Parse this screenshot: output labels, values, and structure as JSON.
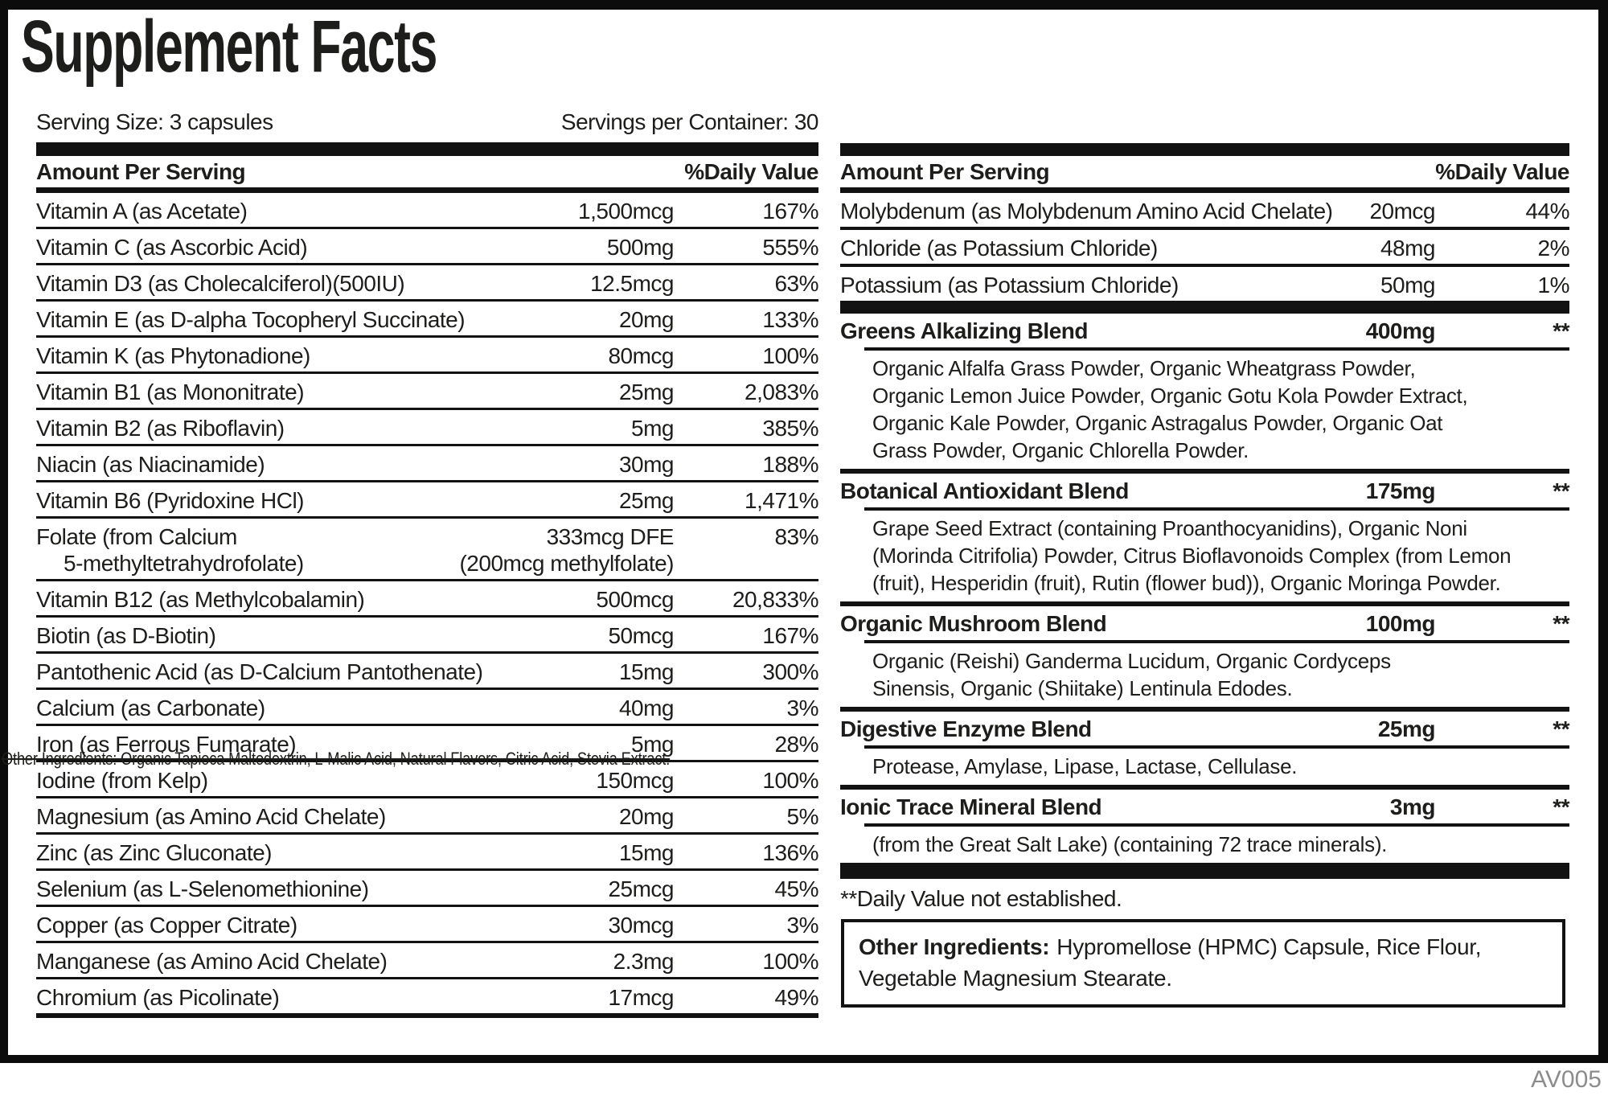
{
  "label": {
    "title": "Supplement Facts",
    "serving_size": "Serving Size: 3 capsules",
    "servings_per_container": "Servings per Container: 30",
    "columns": {
      "amount": "Amount Per Serving",
      "daily_value": "%Daily Value"
    },
    "left_rows": [
      {
        "name": "Vitamin A (as Acetate)",
        "amount": "1,500mcg",
        "dv": "167%"
      },
      {
        "name": "Vitamin C (as Ascorbic Acid)",
        "amount": "500mg",
        "dv": "555%"
      },
      {
        "name": "Vitamin D3 (as Cholecalciferol)(500IU)",
        "amount": "12.5mcg",
        "dv": "63%"
      },
      {
        "name": "Vitamin E (as D-alpha Tocopheryl Succinate)",
        "amount": "20mg",
        "dv": "133%"
      },
      {
        "name": "Vitamin K (as Phytonadione)",
        "amount": "80mcg",
        "dv": "100%"
      },
      {
        "name": "Vitamin B1 (as Mononitrate)",
        "amount": "25mg",
        "dv": "2,083%"
      },
      {
        "name": "Vitamin B2 (as Riboflavin)",
        "amount": "5mg",
        "dv": "385%"
      },
      {
        "name": "Niacin (as Niacinamide)",
        "amount": "30mg",
        "dv": "188%"
      },
      {
        "name": "Vitamin B6 (Pyridoxine HCl)",
        "amount": "25mg",
        "dv": "1,471%"
      },
      {
        "name": "Folate (from Calcium",
        "name2": "5-methyltetrahydrofolate)",
        "amount": "333mcg DFE",
        "amount2": "(200mcg methylfolate)",
        "dv": "83%"
      },
      {
        "name": "Vitamin B12 (as Methylcobalamin)",
        "amount": "500mcg",
        "dv": "20,833%"
      },
      {
        "name": "Biotin (as D-Biotin)",
        "amount": "50mcg",
        "dv": "167%"
      },
      {
        "name": "Pantothenic Acid (as D-Calcium Pantothenate)",
        "amount": "15mg",
        "dv": "300%"
      },
      {
        "name": "Calcium (as Carbonate)",
        "amount": "40mg",
        "dv": "3%"
      },
      {
        "name": "Iron (as Ferrous Fumarate)",
        "amount": "5mg",
        "dv": "28%"
      },
      {
        "name": "Iodine (from Kelp)",
        "amount": "150mcg",
        "dv": "100%"
      },
      {
        "name": "Magnesium (as Amino Acid Chelate)",
        "amount": "20mg",
        "dv": "5%"
      },
      {
        "name": "Zinc (as Zinc Gluconate)",
        "amount": "15mg",
        "dv": "136%"
      },
      {
        "name": "Selenium (as L-Selenomethionine)",
        "amount": "25mcg",
        "dv": "45%"
      },
      {
        "name": "Copper (as Copper Citrate)",
        "amount": "30mcg",
        "dv": "3%"
      },
      {
        "name": "Manganese (as Amino Acid Chelate)",
        "amount": "2.3mg",
        "dv": "100%"
      },
      {
        "name": "Chromium (as Picolinate)",
        "amount": "17mcg",
        "dv": "49%"
      }
    ],
    "right_rows": [
      {
        "name": "Molybdenum (as Molybdenum Amino Acid Chelate)",
        "amount": "20mcg",
        "dv": "44%"
      },
      {
        "name": "Chloride (as Potassium Chloride)",
        "amount": "48mg",
        "dv": "2%"
      },
      {
        "name": "Potassium (as Potassium Chloride)",
        "amount": "50mg",
        "dv": "1%"
      }
    ],
    "blends": [
      {
        "name": "Greens Alkalizing Blend",
        "amount": "400mg",
        "dv": "**",
        "ingredients": "Organic Alfalfa Grass Powder, Organic Wheatgrass Powder,\nOrganic Lemon Juice Powder, Organic Gotu Kola Powder Extract,\nOrganic Kale Powder, Organic Astragalus Powder, Organic Oat\nGrass Powder, Organic Chlorella Powder."
      },
      {
        "name": "Botanical Antioxidant Blend",
        "amount": "175mg",
        "dv": "**",
        "ingredients": "Grape Seed Extract (containing Proanthocyanidins), Organic Noni\n(Morinda Citrifolia) Powder, Citrus Bioflavonoids Complex (from Lemon\n(fruit), Hesperidin (fruit), Rutin (flower bud)), Organic Moringa Powder."
      },
      {
        "name": "Organic Mushroom Blend",
        "amount": "100mg",
        "dv": "**",
        "ingredients": "Organic (Reishi) Ganderma Lucidum, Organic Cordyceps\nSinensis, Organic (Shiitake) Lentinula Edodes."
      },
      {
        "name": "Digestive Enzyme Blend",
        "amount": "25mg",
        "dv": "**",
        "ingredients": "Protease, Amylase, Lipase, Lactase, Cellulase."
      },
      {
        "name": "Ionic Trace Mineral Blend",
        "amount": "3mg",
        "dv": "**",
        "ingredients": "(from the Great Salt Lake) (containing 72 trace minerals)."
      }
    ],
    "footnote": "**Daily Value not established.",
    "other_ingredients": {
      "label": "Other Ingredients:",
      "text": "Hypromellose (HPMC) Capsule, Rice Flour, Vegetable Magnesium Stearate."
    },
    "strikethrough_note": "Other Ingredients: Organic Tapioca Maltodextrin, L-Malic Acid, Natural Flavors, Citric Acid, Stevia Extract.",
    "code": "AV005",
    "colors": {
      "ink": "#1d1d1b",
      "muted": "#8c8c8c"
    }
  }
}
